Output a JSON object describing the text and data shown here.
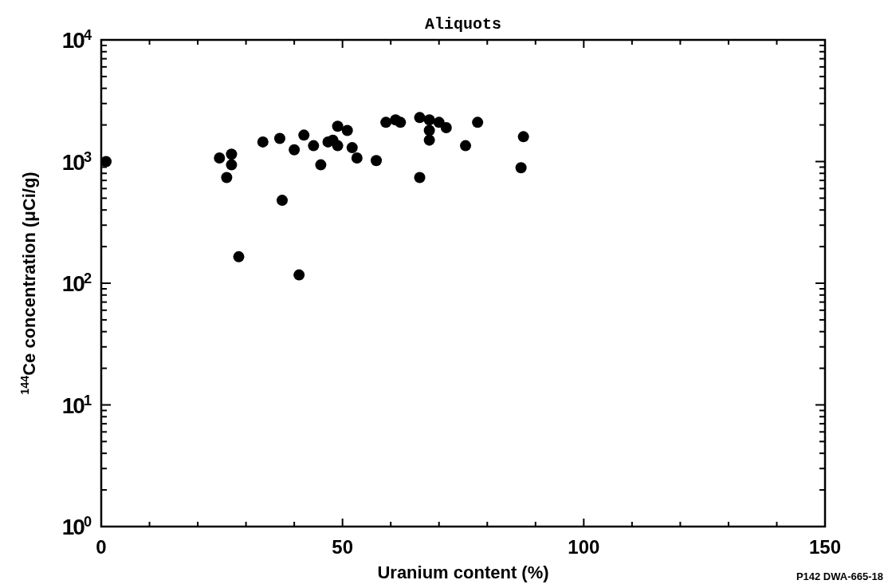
{
  "chart_data": {
    "type": "scatter",
    "title": "Aliquots",
    "xlabel": "Uranium content (%)",
    "ylabel": "$^{144}$Ce concentration (μCi/g)",
    "annotations": [
      "P142 DWA-665-18"
    ],
    "log": "y",
    "grid": false,
    "marker": "circle",
    "xlim": [
      0,
      150
    ],
    "ylim": [
      1,
      10000
    ],
    "xticks": [
      0,
      {
        "value": 10,
        "label": null
      },
      {
        "value": 20,
        "label": null
      },
      {
        "value": 30,
        "label": null
      },
      {
        "value": 40,
        "label": null
      },
      50,
      {
        "value": 60,
        "label": null
      },
      {
        "value": 70,
        "label": null
      },
      {
        "value": 80,
        "label": null
      },
      {
        "value": 90,
        "label": null
      },
      100,
      {
        "value": 110,
        "label": null
      },
      {
        "value": 120,
        "label": null
      },
      {
        "value": 130,
        "label": null
      },
      {
        "value": 140,
        "label": null
      },
      150
    ],
    "yticks": [
      {
        "value": 1,
        "label": "10$^{0}$"
      },
      {
        "value": 2,
        "label": null
      },
      {
        "value": 3,
        "label": null
      },
      {
        "value": 4,
        "label": null
      },
      {
        "value": 5,
        "label": null
      },
      {
        "value": 6,
        "label": null
      },
      {
        "value": 7,
        "label": null
      },
      {
        "value": 8,
        "label": null
      },
      {
        "value": 9,
        "label": null
      },
      {
        "value": 10,
        "label": "10$^{1}$"
      },
      {
        "value": 20,
        "label": null
      },
      {
        "value": 30,
        "label": null
      },
      {
        "value": 40,
        "label": null
      },
      {
        "value": 50,
        "label": null
      },
      {
        "value": 60,
        "label": null
      },
      {
        "value": 70,
        "label": null
      },
      {
        "value": 80,
        "label": null
      },
      {
        "value": 90,
        "label": null
      },
      {
        "value": 100,
        "label": "10$^{2}$"
      },
      {
        "value": 200,
        "label": null
      },
      {
        "value": 300,
        "label": null
      },
      {
        "value": 400,
        "label": null
      },
      {
        "value": 500,
        "label": null
      },
      {
        "value": 600,
        "label": null
      },
      {
        "value": 700,
        "label": null
      },
      {
        "value": 800,
        "label": null
      },
      {
        "value": 900,
        "label": null
      },
      {
        "value": 1000,
        "label": "10$^{3}$"
      },
      {
        "value": 2000,
        "label": null
      },
      {
        "value": 3000,
        "label": null
      },
      {
        "value": 4000,
        "label": null
      },
      {
        "value": 5000,
        "label": null
      },
      {
        "value": 6000,
        "label": null
      },
      {
        "value": 7000,
        "label": null
      },
      {
        "value": 8000,
        "label": null
      },
      {
        "value": 9000,
        "label": null
      },
      {
        "value": 10000,
        "label": "10$^{4}$"
      }
    ],
    "series": [
      {
        "color": "#000000",
        "x": [
          1,
          24.5,
          27,
          27,
          26,
          33.5,
          37,
          42,
          44,
          45.5,
          37.5,
          28.5,
          41,
          40,
          47,
          48,
          49,
          49,
          51,
          52,
          53,
          57,
          59,
          61,
          62,
          66,
          68,
          70,
          71.5,
          68,
          68,
          66,
          75.5,
          78,
          87.5,
          87
        ],
        "values": [
          1000,
          1070,
          1150,
          940,
          740,
          1450,
          1550,
          1650,
          1350,
          940,
          480,
          165,
          117,
          1250,
          1450,
          1500,
          1350,
          1950,
          1800,
          1300,
          1070,
          1020,
          2100,
          2200,
          2100,
          2300,
          2200,
          2100,
          1900,
          1800,
          1500,
          740,
          1350,
          2100,
          1600,
          890
        ]
      }
    ]
  }
}
